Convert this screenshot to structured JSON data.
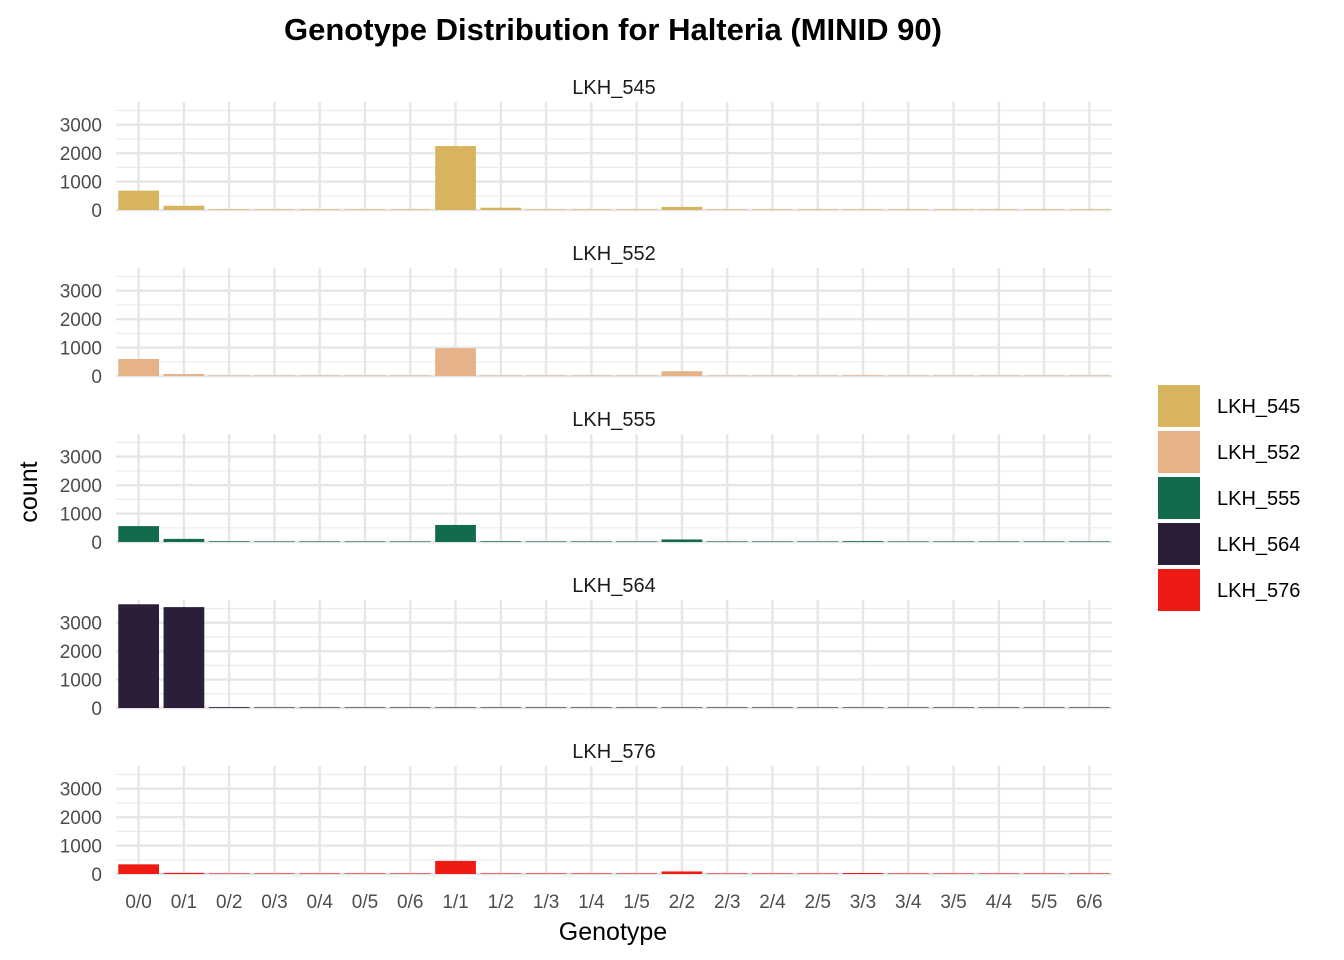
{
  "chart_data": {
    "type": "bar",
    "title": "Genotype Distribution for Halteria (MINID 90)",
    "xlabel": "Genotype",
    "ylabel": "count",
    "ylim": [
      0,
      3800
    ],
    "yticks": [
      0,
      1000,
      2000,
      3000
    ],
    "grid": true,
    "legend_position": "right",
    "categories": [
      "0/0",
      "0/1",
      "0/2",
      "0/3",
      "0/4",
      "0/5",
      "0/6",
      "1/1",
      "1/2",
      "1/3",
      "1/4",
      "1/5",
      "2/2",
      "2/3",
      "2/4",
      "2/5",
      "3/3",
      "3/4",
      "3/5",
      "4/4",
      "5/5",
      "6/6"
    ],
    "series": [
      {
        "name": "LKH_545",
        "color": "#D9B45E",
        "values": [
          680,
          150,
          25,
          5,
          2,
          1,
          1,
          2250,
          80,
          20,
          4,
          2,
          110,
          20,
          5,
          2,
          15,
          3,
          1,
          4,
          1,
          1
        ]
      },
      {
        "name": "LKH_552",
        "color": "#E6B389",
        "values": [
          600,
          70,
          10,
          2,
          1,
          1,
          1,
          980,
          20,
          6,
          2,
          1,
          170,
          10,
          3,
          1,
          25,
          2,
          1,
          3,
          1,
          1
        ]
      },
      {
        "name": "LKH_555",
        "color": "#136B4F",
        "values": [
          560,
          110,
          25,
          6,
          3,
          1,
          2,
          600,
          25,
          8,
          3,
          1,
          90,
          10,
          4,
          2,
          30,
          4,
          2,
          12,
          3,
          2
        ]
      },
      {
        "name": "LKH_564",
        "color": "#2A1E38",
        "values": [
          3650,
          3550,
          30,
          10,
          3,
          2,
          2,
          20,
          15,
          4,
          2,
          1,
          5,
          3,
          2,
          1,
          3,
          1,
          1,
          2,
          1,
          1
        ]
      },
      {
        "name": "LKH_576",
        "color": "#EE1A13",
        "values": [
          340,
          40,
          15,
          4,
          2,
          1,
          1,
          460,
          20,
          8,
          3,
          1,
          90,
          8,
          3,
          1,
          35,
          4,
          1,
          12,
          2,
          1
        ]
      }
    ]
  }
}
